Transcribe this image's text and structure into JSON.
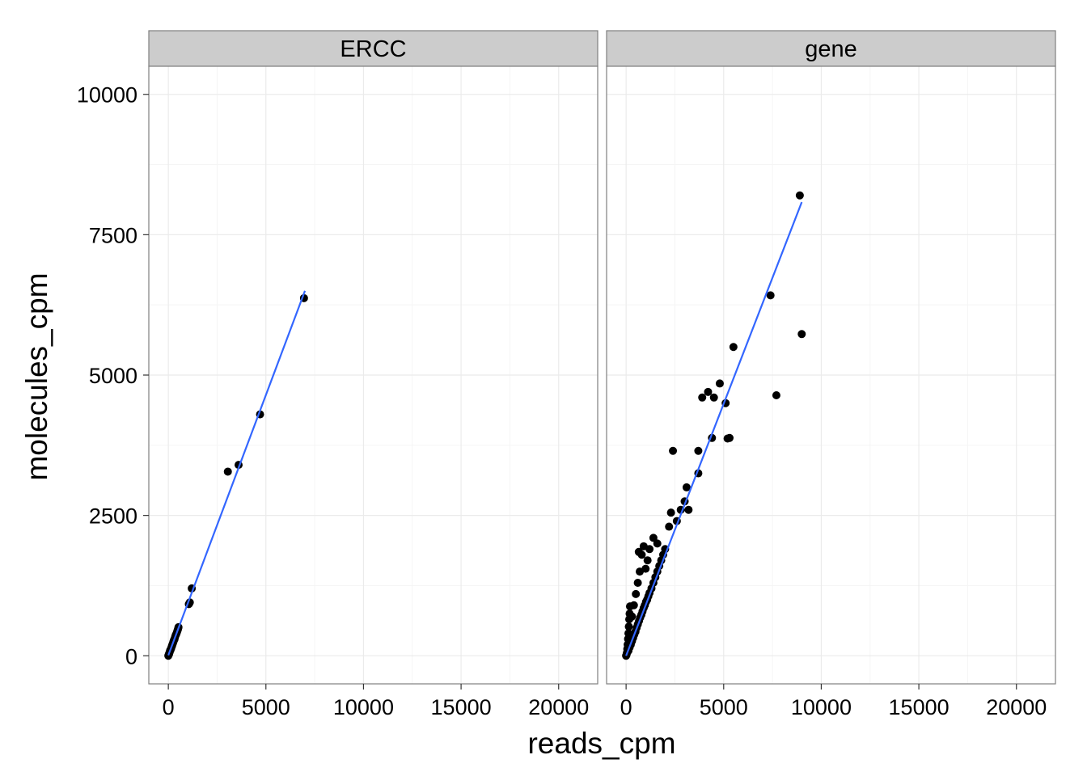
{
  "chart_data": {
    "type": "scatter",
    "xlabel": "reads_cpm",
    "ylabel": "molecules_cpm",
    "xlim": [
      -1000,
      22000
    ],
    "ylim": [
      -500,
      10500
    ],
    "x_ticks": [
      0,
      5000,
      10000,
      15000,
      20000
    ],
    "x_tick_labels": [
      "0",
      "5000",
      "10000",
      "15000",
      "20000"
    ],
    "y_ticks": [
      0,
      2500,
      5000,
      7500,
      10000
    ],
    "y_tick_labels": [
      "0",
      "2500",
      "5000",
      "7500",
      "10000"
    ],
    "grid": true,
    "colors": {
      "point": "#000000",
      "fit_line": "#3366ff",
      "strip_bg": "#cccccc",
      "panel_border": "#7f7f7f",
      "grid_major": "#ebebeb",
      "grid_minor": "#f5f5f5"
    },
    "panels": [
      {
        "strip": "ERCC",
        "points": [
          [
            0,
            0
          ],
          [
            20,
            20
          ],
          [
            40,
            35
          ],
          [
            60,
            60
          ],
          [
            80,
            80
          ],
          [
            100,
            100
          ],
          [
            120,
            110
          ],
          [
            150,
            140
          ],
          [
            180,
            170
          ],
          [
            200,
            190
          ],
          [
            230,
            220
          ],
          [
            260,
            250
          ],
          [
            290,
            280
          ],
          [
            320,
            300
          ],
          [
            350,
            340
          ],
          [
            380,
            370
          ],
          [
            410,
            390
          ],
          [
            440,
            420
          ],
          [
            470,
            450
          ],
          [
            500,
            480
          ],
          [
            520,
            510
          ],
          [
            1050,
            920
          ],
          [
            1100,
            950
          ],
          [
            1200,
            1200
          ],
          [
            3050,
            3280
          ],
          [
            3600,
            3400
          ],
          [
            4700,
            4300
          ],
          [
            6950,
            6370
          ]
        ],
        "fit_line": [
          [
            0,
            10
          ],
          [
            7000,
            6500
          ]
        ]
      },
      {
        "strip": "gene",
        "points": [
          [
            0,
            0
          ],
          [
            20,
            15
          ],
          [
            40,
            50
          ],
          [
            60,
            120
          ],
          [
            80,
            200
          ],
          [
            100,
            300
          ],
          [
            120,
            400
          ],
          [
            140,
            520
          ],
          [
            160,
            650
          ],
          [
            180,
            750
          ],
          [
            200,
            880
          ],
          [
            60,
            60
          ],
          [
            120,
            90
          ],
          [
            180,
            150
          ],
          [
            240,
            200
          ],
          [
            300,
            260
          ],
          [
            360,
            320
          ],
          [
            420,
            380
          ],
          [
            480,
            430
          ],
          [
            540,
            500
          ],
          [
            600,
            560
          ],
          [
            660,
            620
          ],
          [
            720,
            680
          ],
          [
            780,
            730
          ],
          [
            840,
            790
          ],
          [
            900,
            850
          ],
          [
            960,
            900
          ],
          [
            1020,
            960
          ],
          [
            1080,
            1000
          ],
          [
            1140,
            1060
          ],
          [
            1200,
            1120
          ],
          [
            1300,
            1200
          ],
          [
            1400,
            1300
          ],
          [
            1500,
            1400
          ],
          [
            1600,
            1500
          ],
          [
            1700,
            1600
          ],
          [
            1800,
            1700
          ],
          [
            1900,
            1800
          ],
          [
            2000,
            1900
          ],
          [
            300,
            700
          ],
          [
            400,
            900
          ],
          [
            500,
            1100
          ],
          [
            600,
            1300
          ],
          [
            700,
            1500
          ],
          [
            650,
            1850
          ],
          [
            800,
            1800
          ],
          [
            900,
            1950
          ],
          [
            1000,
            1550
          ],
          [
            1100,
            1700
          ],
          [
            1200,
            1900
          ],
          [
            1400,
            2100
          ],
          [
            1600,
            2000
          ],
          [
            2200,
            2300
          ],
          [
            2300,
            2550
          ],
          [
            2600,
            2400
          ],
          [
            2800,
            2600
          ],
          [
            3000,
            2750
          ],
          [
            3100,
            3000
          ],
          [
            3200,
            2600
          ],
          [
            2400,
            3650
          ],
          [
            3700,
            3650
          ],
          [
            3700,
            3250
          ],
          [
            3900,
            4600
          ],
          [
            4200,
            4700
          ],
          [
            4400,
            3880
          ],
          [
            4500,
            4600
          ],
          [
            4800,
            4850
          ],
          [
            5100,
            4500
          ],
          [
            5200,
            3870
          ],
          [
            5300,
            3880
          ],
          [
            5500,
            5500
          ],
          [
            7400,
            6420
          ],
          [
            7700,
            4640
          ],
          [
            8900,
            8200
          ],
          [
            9000,
            5730
          ]
        ],
        "fit_line": [
          [
            0,
            0
          ],
          [
            9000,
            8080
          ]
        ]
      }
    ]
  }
}
